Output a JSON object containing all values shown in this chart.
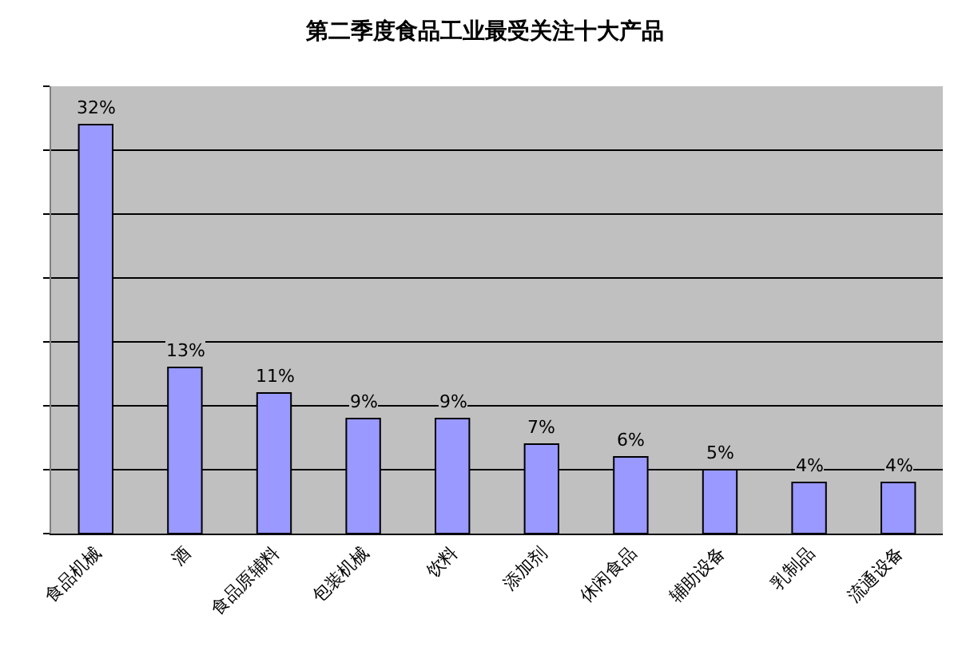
{
  "chart_data": {
    "type": "bar",
    "title": "第二季度食品工业最受关注十大产品",
    "categories": [
      "食品机械",
      "酒",
      "食品原辅料",
      "包装机械",
      "饮料",
      "添加剂",
      "休闲食品",
      "辅助设备",
      "乳制品",
      "流通设备"
    ],
    "values": [
      32,
      13,
      11,
      9,
      9,
      7,
      6,
      5,
      4,
      4
    ],
    "value_labels": [
      "32%",
      "13%",
      "11%",
      "9%",
      "9%",
      "7%",
      "6%",
      "5%",
      "4%",
      "4%"
    ],
    "color": "#9999ff",
    "ylim": [
      0,
      35
    ],
    "yticks": [
      {
        "value": 0,
        "label": null
      },
      {
        "value": 5,
        "label": null
      },
      {
        "value": 10,
        "label": null
      },
      {
        "value": 15,
        "label": null
      },
      {
        "value": 20,
        "label": null
      },
      {
        "value": 25,
        "label": null
      },
      {
        "value": 30,
        "label": null
      },
      {
        "value": 35,
        "label": null
      }
    ],
    "tick_labels": "x",
    "grid": "y"
  }
}
